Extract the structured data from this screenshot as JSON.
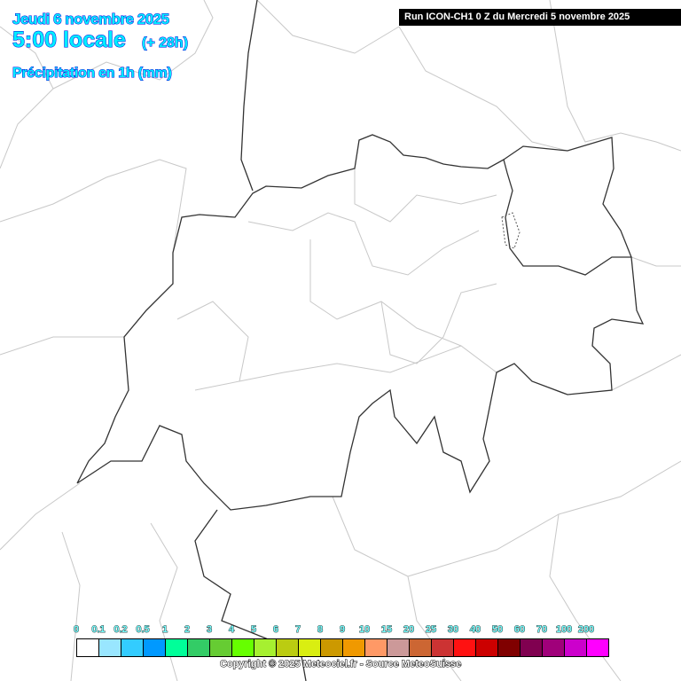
{
  "header": {
    "date": "Jeudi 6 novembre 2025",
    "time": "5:00 locale",
    "lead": "(+ 28h)",
    "parameter": "Précipitation en 1h (mm)",
    "run": "Run ICON-CH1 0 Z du Mercredi 5 novembre 2025"
  },
  "legend": {
    "labels": [
      "0",
      "0.1",
      "0.2",
      "0.5",
      "1",
      "2",
      "3",
      "4",
      "5",
      "6",
      "7",
      "8",
      "9",
      "10",
      "15",
      "20",
      "25",
      "30",
      "40",
      "50",
      "60",
      "70",
      "100",
      "200"
    ],
    "colors": [
      "#ffffff",
      "#99e6ff",
      "#33ccff",
      "#0099ff",
      "#00ff99",
      "#33cc66",
      "#66cc33",
      "#66ff00",
      "#a6f030",
      "#bbcc11",
      "#d9ee11",
      "#cc9900",
      "#f09900",
      "#ff9966",
      "#cc9999",
      "#cc6633",
      "#cc3333",
      "#ff1111",
      "#cc0000",
      "#800000",
      "#800050",
      "#a0007a",
      "#cc00cc",
      "#ff00ff"
    ]
  },
  "copyright": "Copyright © 2025 Meteociel.fr - Source MeteoSuisse",
  "colors": {
    "title_fill": "#00eeff",
    "title_outline": "#0000dd",
    "border_country": "#333333",
    "border_region": "#c8c8c8"
  }
}
